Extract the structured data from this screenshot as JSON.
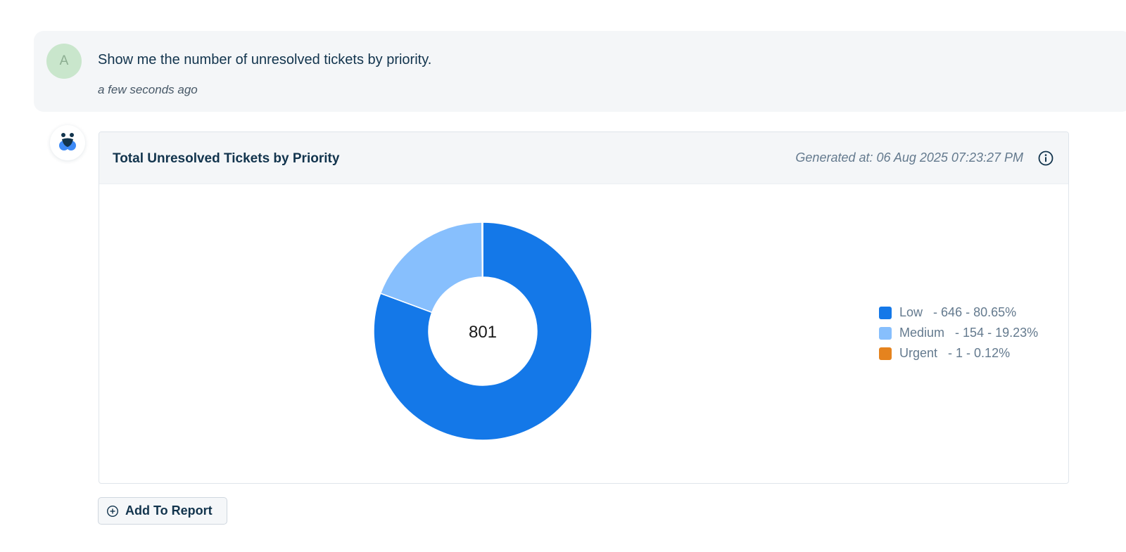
{
  "user_message": {
    "avatar_initial": "A",
    "text": "Show me the number of unresolved tickets by priority.",
    "timestamp": "a few seconds ago"
  },
  "bot": {
    "avatar_icon": "bot-logo-icon"
  },
  "card": {
    "title": "Total Unresolved Tickets by Priority",
    "generated_at": "Generated at: 06 Aug 2025 07:23:27 PM",
    "info_icon": "info-icon"
  },
  "chart_data": {
    "type": "pie",
    "donut": true,
    "center_label": "801",
    "categories": [
      "Low",
      "Medium",
      "Urgent"
    ],
    "values": [
      646,
      154,
      1
    ],
    "percentages": [
      "80.65%",
      "19.23%",
      "0.12%"
    ],
    "colors": [
      "#1478e8",
      "#87bffd",
      "#e5831e"
    ],
    "legend_position": "right",
    "legend": [
      {
        "name": "Low",
        "detail": "- 646 - 80.65%",
        "color": "#1478e8"
      },
      {
        "name": "Medium",
        "detail": "- 154 - 19.23%",
        "color": "#87bffd"
      },
      {
        "name": "Urgent",
        "detail": "- 1 - 0.12%",
        "color": "#e5831e"
      }
    ]
  },
  "actions": {
    "add_to_report_label": "Add To Report",
    "add_icon": "plus-circle-icon"
  }
}
